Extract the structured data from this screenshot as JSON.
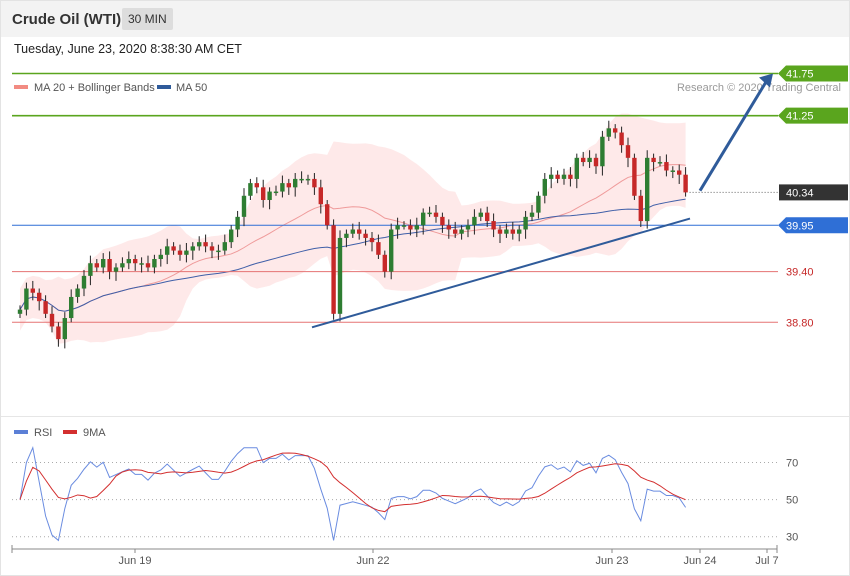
{
  "header": {
    "title": "Crude Oil (WTI)",
    "timeframe": "30 MIN"
  },
  "datetime": "Tuesday, June 23, 2020 8:38:30 AM CET",
  "legend": {
    "bb": "MA 20 + Bollinger Bands",
    "ma50": "MA 50",
    "source": "Research © 2020 Trading Central"
  },
  "rsi_legend": {
    "rsi": "RSI",
    "ma": "9MA"
  },
  "colors": {
    "up": "#2e7d32",
    "down": "#c62828",
    "resistance": "#5aa51e",
    "support_blue": "#2f6fd6",
    "support_red": "#e57373",
    "trend": "#2f5b9a",
    "band": "#fde1e1",
    "last": "#333333"
  },
  "chart_data": [
    {
      "type": "candlestick",
      "title": "Crude Oil (WTI)",
      "timeframe": "30 MIN",
      "ylim": [
        37.7,
        42.1
      ],
      "x_ticks": [
        "Jun 19",
        "Jun 22",
        "Jun 23",
        "Jun 24",
        "Jul 7"
      ],
      "overlays": [
        "MA 20 + Bollinger Bands",
        "MA 50"
      ],
      "levels": [
        {
          "label": "41.75",
          "value": 41.75,
          "kind": "resistance"
        },
        {
          "label": "41.25",
          "value": 41.25,
          "kind": "resistance"
        },
        {
          "label": "40.34",
          "value": 40.34,
          "kind": "last"
        },
        {
          "label": "39.95",
          "value": 39.95,
          "kind": "pivot"
        },
        {
          "label": "39.40",
          "value": 39.4,
          "kind": "support"
        },
        {
          "label": "38.80",
          "value": 38.8,
          "kind": "support"
        }
      ],
      "close": [
        38.95,
        39.2,
        39.15,
        39.05,
        38.9,
        38.75,
        38.6,
        38.85,
        39.1,
        39.2,
        39.35,
        39.5,
        39.45,
        39.55,
        39.4,
        39.45,
        39.5,
        39.55,
        39.5,
        39.5,
        39.45,
        39.55,
        39.6,
        39.7,
        39.65,
        39.6,
        39.65,
        39.7,
        39.75,
        39.7,
        39.65,
        39.65,
        39.75,
        39.9,
        40.05,
        40.3,
        40.45,
        40.4,
        40.25,
        40.35,
        40.35,
        40.45,
        40.4,
        40.5,
        40.5,
        40.5,
        40.4,
        40.2,
        39.95,
        38.9,
        39.8,
        39.85,
        39.9,
        39.85,
        39.8,
        39.75,
        39.6,
        39.4,
        39.9,
        39.95,
        39.95,
        39.9,
        39.95,
        40.1,
        40.1,
        40.05,
        39.95,
        39.9,
        39.85,
        39.9,
        39.95,
        40.05,
        40.1,
        40.0,
        39.9,
        39.85,
        39.9,
        39.85,
        39.9,
        40.05,
        40.1,
        40.3,
        40.5,
        40.55,
        40.5,
        40.55,
        40.5,
        40.75,
        40.7,
        40.75,
        40.65,
        41.0,
        41.1,
        41.05,
        40.9,
        40.75,
        40.3,
        40.0,
        40.75,
        40.7,
        40.7,
        40.6,
        40.6,
        40.55,
        40.34
      ],
      "rsi": {
        "ylim": [
          25,
          80
        ],
        "ticks": [
          70,
          50,
          30
        ]
      }
    }
  ]
}
